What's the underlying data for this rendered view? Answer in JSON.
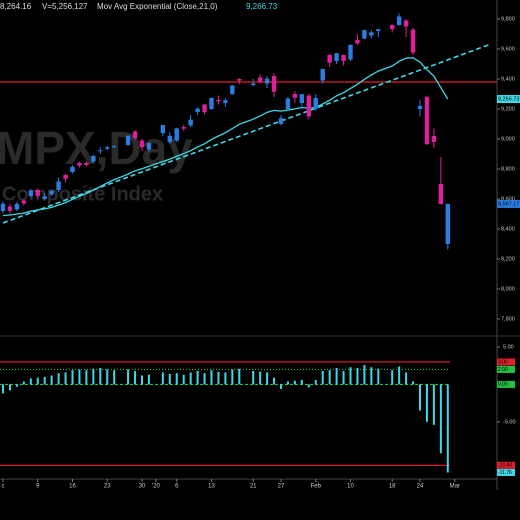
{
  "chart_data": {
    "type": "candlestick",
    "header": {
      "low": "8,264.16",
      "volume": "V=5,256,127",
      "study": "Mov Avg Exponential (Close,21,0)",
      "study_value": "9,266.73"
    },
    "watermark": {
      "symbol": "MPX,Day",
      "name": "Composite Index"
    },
    "categories": [
      "c",
      null,
      null,
      null,
      null,
      "9",
      null,
      null,
      null,
      null,
      "16",
      null,
      null,
      null,
      null,
      "23",
      null,
      null,
      null,
      null,
      "30",
      null,
      "'20",
      null,
      null,
      "6",
      null,
      null,
      null,
      null,
      "13",
      null,
      null,
      null,
      null,
      null,
      "21",
      null,
      null,
      null,
      "27",
      null,
      null,
      null,
      null,
      "Feb",
      null,
      null,
      null,
      null,
      "10",
      null,
      null,
      null,
      null,
      null,
      "18",
      null,
      null,
      null,
      "24",
      null,
      null,
      null,
      null,
      "Mar"
    ],
    "open": [
      8520,
      8550,
      8530,
      8590,
      8620,
      8660,
      8600,
      8630,
      8660,
      8760,
      8780,
      8840,
      8840,
      8850,
      8920,
      8935,
      8950,
      null,
      8960,
      9050,
      8990,
      8930,
      null,
      9040,
      8980,
      8990,
      9080,
      9090,
      9180,
      9230,
      9200,
      9260,
      9240,
      9300,
      9400,
      null,
      9360,
      9410,
      9370,
      9420,
      9100,
      9200,
      9300,
      9240,
      9290,
      9200,
      9390,
      9560,
      9520,
      9560,
      9530,
      9660,
      9670,
      9690,
      9720,
      null,
      9760,
      9760,
      9790,
      9730,
      9200,
      9280,
      9020,
      8700,
      8300,
      null
    ],
    "high": [
      8585,
      8565,
      8580,
      8600,
      8665,
      8670,
      8640,
      8665,
      8745,
      8770,
      8825,
      8850,
      8850,
      8895,
      8945,
      8955,
      8960,
      null,
      9025,
      9060,
      9000,
      8980,
      null,
      9095,
      9045,
      9075,
      9095,
      9160,
      9210,
      9235,
      9275,
      9290,
      9270,
      9360,
      9405,
      null,
      9400,
      9430,
      9420,
      9440,
      9160,
      9280,
      9320,
      9300,
      9300,
      9300,
      9470,
      9570,
      9575,
      9565,
      9630,
      9700,
      9730,
      9725,
      9735,
      null,
      9765,
      9838,
      9800,
      9740,
      9260,
      9290,
      9070,
      8880,
      8570,
      null
    ],
    "low": [
      8505,
      8500,
      8520,
      8555,
      8610,
      8610,
      8590,
      8620,
      8645,
      8710,
      8770,
      8810,
      8815,
      8840,
      8900,
      8925,
      8940,
      null,
      8955,
      8990,
      8920,
      8915,
      null,
      9020,
      8970,
      8980,
      9055,
      9080,
      9160,
      9165,
      9195,
      9230,
      9215,
      9295,
      9365,
      null,
      9350,
      9370,
      9340,
      9280,
      9090,
      9190,
      9240,
      9200,
      9130,
      9190,
      9370,
      9480,
      9500,
      9490,
      9520,
      9625,
      9665,
      9670,
      9680,
      null,
      9710,
      9755,
      9680,
      9560,
      9150,
      8960,
      8940,
      8565,
      8264.16,
      null
    ],
    "close": [
      8568,
      8521,
      8567,
      8570,
      8657,
      8621,
      8617,
      8654,
      8717,
      8735,
      8814,
      8823,
      8827,
      8887,
      8925,
      8945,
      8952,
      null,
      9022,
      9007,
      8945,
      8973,
      null,
      9093,
      9021,
      9071,
      9069,
      9129,
      9203,
      9179,
      9274,
      9251,
      9259,
      9357,
      9389,
      null,
      9370,
      9383,
      9402,
      9315,
      9139,
      9270,
      9275,
      9299,
      9151,
      9273,
      9467,
      9509,
      9572,
      9521,
      9628,
      9638,
      9726,
      9712,
      9731,
      null,
      9733,
      9817,
      9751,
      9577,
      9221,
      8966,
      8980,
      8566,
      8567.17,
      null
    ],
    "up_color": "#2a7de1",
    "down_color": "#e0209a",
    "ylim": [
      7693,
      9927
    ],
    "yticks": [
      {
        "value": 7800,
        "label": "7,800"
      },
      {
        "value": 8000,
        "label": "8,000"
      },
      {
        "value": 8200,
        "label": "8,200"
      },
      {
        "value": 8400,
        "label": "8,400"
      },
      {
        "value": 8600,
        "label": "8,600"
      },
      {
        "value": 8800,
        "label": "8,800"
      },
      {
        "value": 9000,
        "label": "9,000"
      },
      {
        "value": 9200,
        "label": "9,200"
      },
      {
        "value": 9400,
        "label": "9,400"
      },
      {
        "value": 9600,
        "label": "9,600"
      },
      {
        "value": 9800,
        "label": "9,800"
      }
    ],
    "ema": {
      "color": "#3fd8e6",
      "values": [
        8490,
        8493,
        8500,
        8506,
        8519,
        8527,
        8534,
        8544,
        8560,
        8576,
        8598,
        8618,
        8636,
        8659,
        8683,
        8707,
        8729,
        8747,
        8766,
        8788,
        8802,
        8818,
        8835,
        8850,
        8866,
        8885,
        8902,
        8922,
        8947,
        8968,
        8997,
        9020,
        9042,
        9070,
        9098,
        9115,
        9132,
        9154,
        9178,
        9191,
        9186,
        9193,
        9201,
        9210,
        9205,
        9211,
        9234,
        9259,
        9288,
        9309,
        9337,
        9365,
        9398,
        9427,
        9453,
        9470,
        9487,
        9518,
        9539,
        9542,
        9513,
        9463,
        9419,
        9342,
        9266.73,
        null
      ]
    },
    "hlines": [
      {
        "value": 9380,
        "color": "#e0202a"
      }
    ],
    "trend_line": {
      "x": [
        0,
        70
      ],
      "y": [
        8440,
        9630
      ],
      "color": "#3fd8e6"
    },
    "price_labels": [
      {
        "value": 9266.73,
        "label": "9,266.73",
        "color": "#3fd8e6"
      },
      {
        "value": 8567.17,
        "label": "8,567.17",
        "color": "#2a7de1"
      }
    ],
    "indicator": {
      "type": "histogram",
      "color": "#3fd8e6",
      "values": [
        -1.2,
        -0.8,
        -0.3,
        0.4,
        0.8,
        0.9,
        1.0,
        1.2,
        1.5,
        1.6,
        1.9,
        2.0,
        1.9,
        2.1,
        2.2,
        2.0,
        1.9,
        null,
        2.0,
        1.8,
        1.2,
        1.3,
        null,
        1.6,
        1.4,
        1.5,
        1.3,
        1.6,
        1.8,
        1.5,
        1.9,
        1.7,
        1.6,
        2.0,
        2.1,
        null,
        1.8,
        1.7,
        1.6,
        0.9,
        -0.6,
        0.4,
        0.5,
        0.6,
        -0.4,
        0.6,
        1.8,
        1.9,
        2.2,
        1.8,
        2.3,
        2.2,
        2.6,
        2.3,
        2.1,
        null,
        1.9,
        2.4,
        1.6,
        0.4,
        -3.5,
        -5.0,
        -5.4,
        -9.2,
        -11.76,
        null
      ],
      "ylim": [
        -12.5,
        6.2
      ],
      "yticks": [
        {
          "value": 5,
          "label": "5.00"
        },
        {
          "value": -5,
          "label": "-5.00"
        }
      ],
      "levels": [
        {
          "value": 3,
          "label": "3.00",
          "color": "#e0202a",
          "style": "solid"
        },
        {
          "value": 2,
          "label": "2.00",
          "color": "#22c040",
          "style": "dotted"
        },
        {
          "value": 0,
          "label": "0.00",
          "color": "#22c040",
          "style": "dashed"
        },
        {
          "value": -10.8,
          "label": "-10.80",
          "color": "#e0202a",
          "style": "solid"
        },
        {
          "value": -11.76,
          "label": "-11.76",
          "color": "#3fd8e6",
          "style": "none"
        }
      ]
    }
  }
}
